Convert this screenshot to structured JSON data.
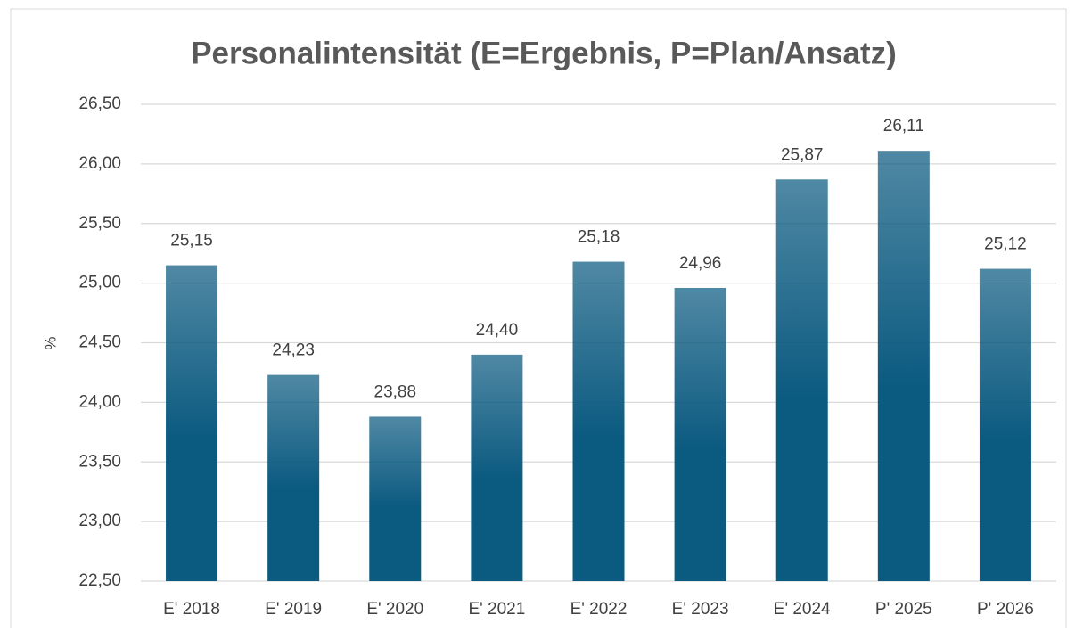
{
  "chart_data": {
    "type": "bar",
    "title": "Personalintensität (E=Ergebnis, P=Plan/Ansatz)",
    "y_label": "%",
    "categories": [
      "E' 2018",
      "E' 2019",
      "E' 2020",
      "E' 2021",
      "E' 2022",
      "E' 2023",
      "E' 2024",
      "P' 2025",
      "P' 2026"
    ],
    "values": [
      25.15,
      24.23,
      23.88,
      24.4,
      25.18,
      24.96,
      25.87,
      26.11,
      25.12
    ],
    "value_labels": [
      "25,15",
      "24,23",
      "23,88",
      "24,40",
      "25,18",
      "24,96",
      "25,87",
      "26,11",
      "25,12"
    ],
    "color": "#0b5a80",
    "ylim": [
      22.5,
      26.5
    ],
    "yticks": [
      {
        "value": 22.5,
        "label": "22,50"
      },
      {
        "value": 23,
        "label": "23,00"
      },
      {
        "value": 23.5,
        "label": "23,50"
      },
      {
        "value": 24,
        "label": "24,00"
      },
      {
        "value": 24.5,
        "label": "24,50"
      },
      {
        "value": 25,
        "label": "25,00"
      },
      {
        "value": 25.5,
        "label": "25,50"
      },
      {
        "value": 26,
        "label": "26,00"
      },
      {
        "value": 26.5,
        "label": "26,50"
      }
    ],
    "grid": true
  }
}
